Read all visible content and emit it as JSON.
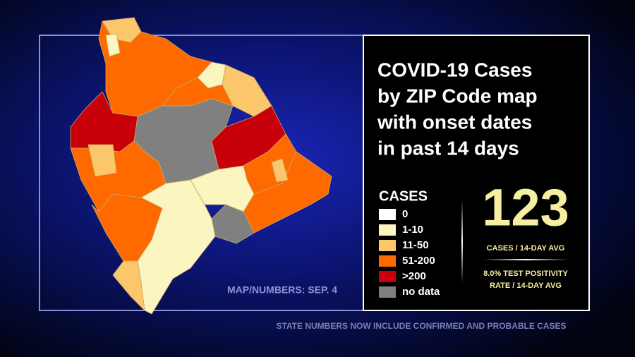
{
  "title": [
    "COVID-19 Cases",
    "by ZIP Code map",
    "with onset dates",
    "in past 14 days"
  ],
  "legend": {
    "title": "CASES",
    "items": [
      {
        "label": "0",
        "color": "#ffffff"
      },
      {
        "label": "1-10",
        "color": "#fbf5c0"
      },
      {
        "label": "11-50",
        "color": "#fbc76a"
      },
      {
        "label": "51-200",
        "color": "#ff6a00"
      },
      {
        "label": ">200",
        "color": "#c8000a"
      },
      {
        "label": "no data",
        "color": "#808080"
      }
    ]
  },
  "stats": {
    "cases": 123,
    "cases_label": "CASES / 14-DAY AVG",
    "positivity": [
      "8.0% TEST POSITIVITY",
      "RATE / 14-DAY AVG"
    ]
  },
  "map_note": "MAP/NUMBERS: SEP. 4",
  "footnote": "STATE NUMBERS NOW INCLUDE CONFIRMED AND PROBABLE CASES"
}
